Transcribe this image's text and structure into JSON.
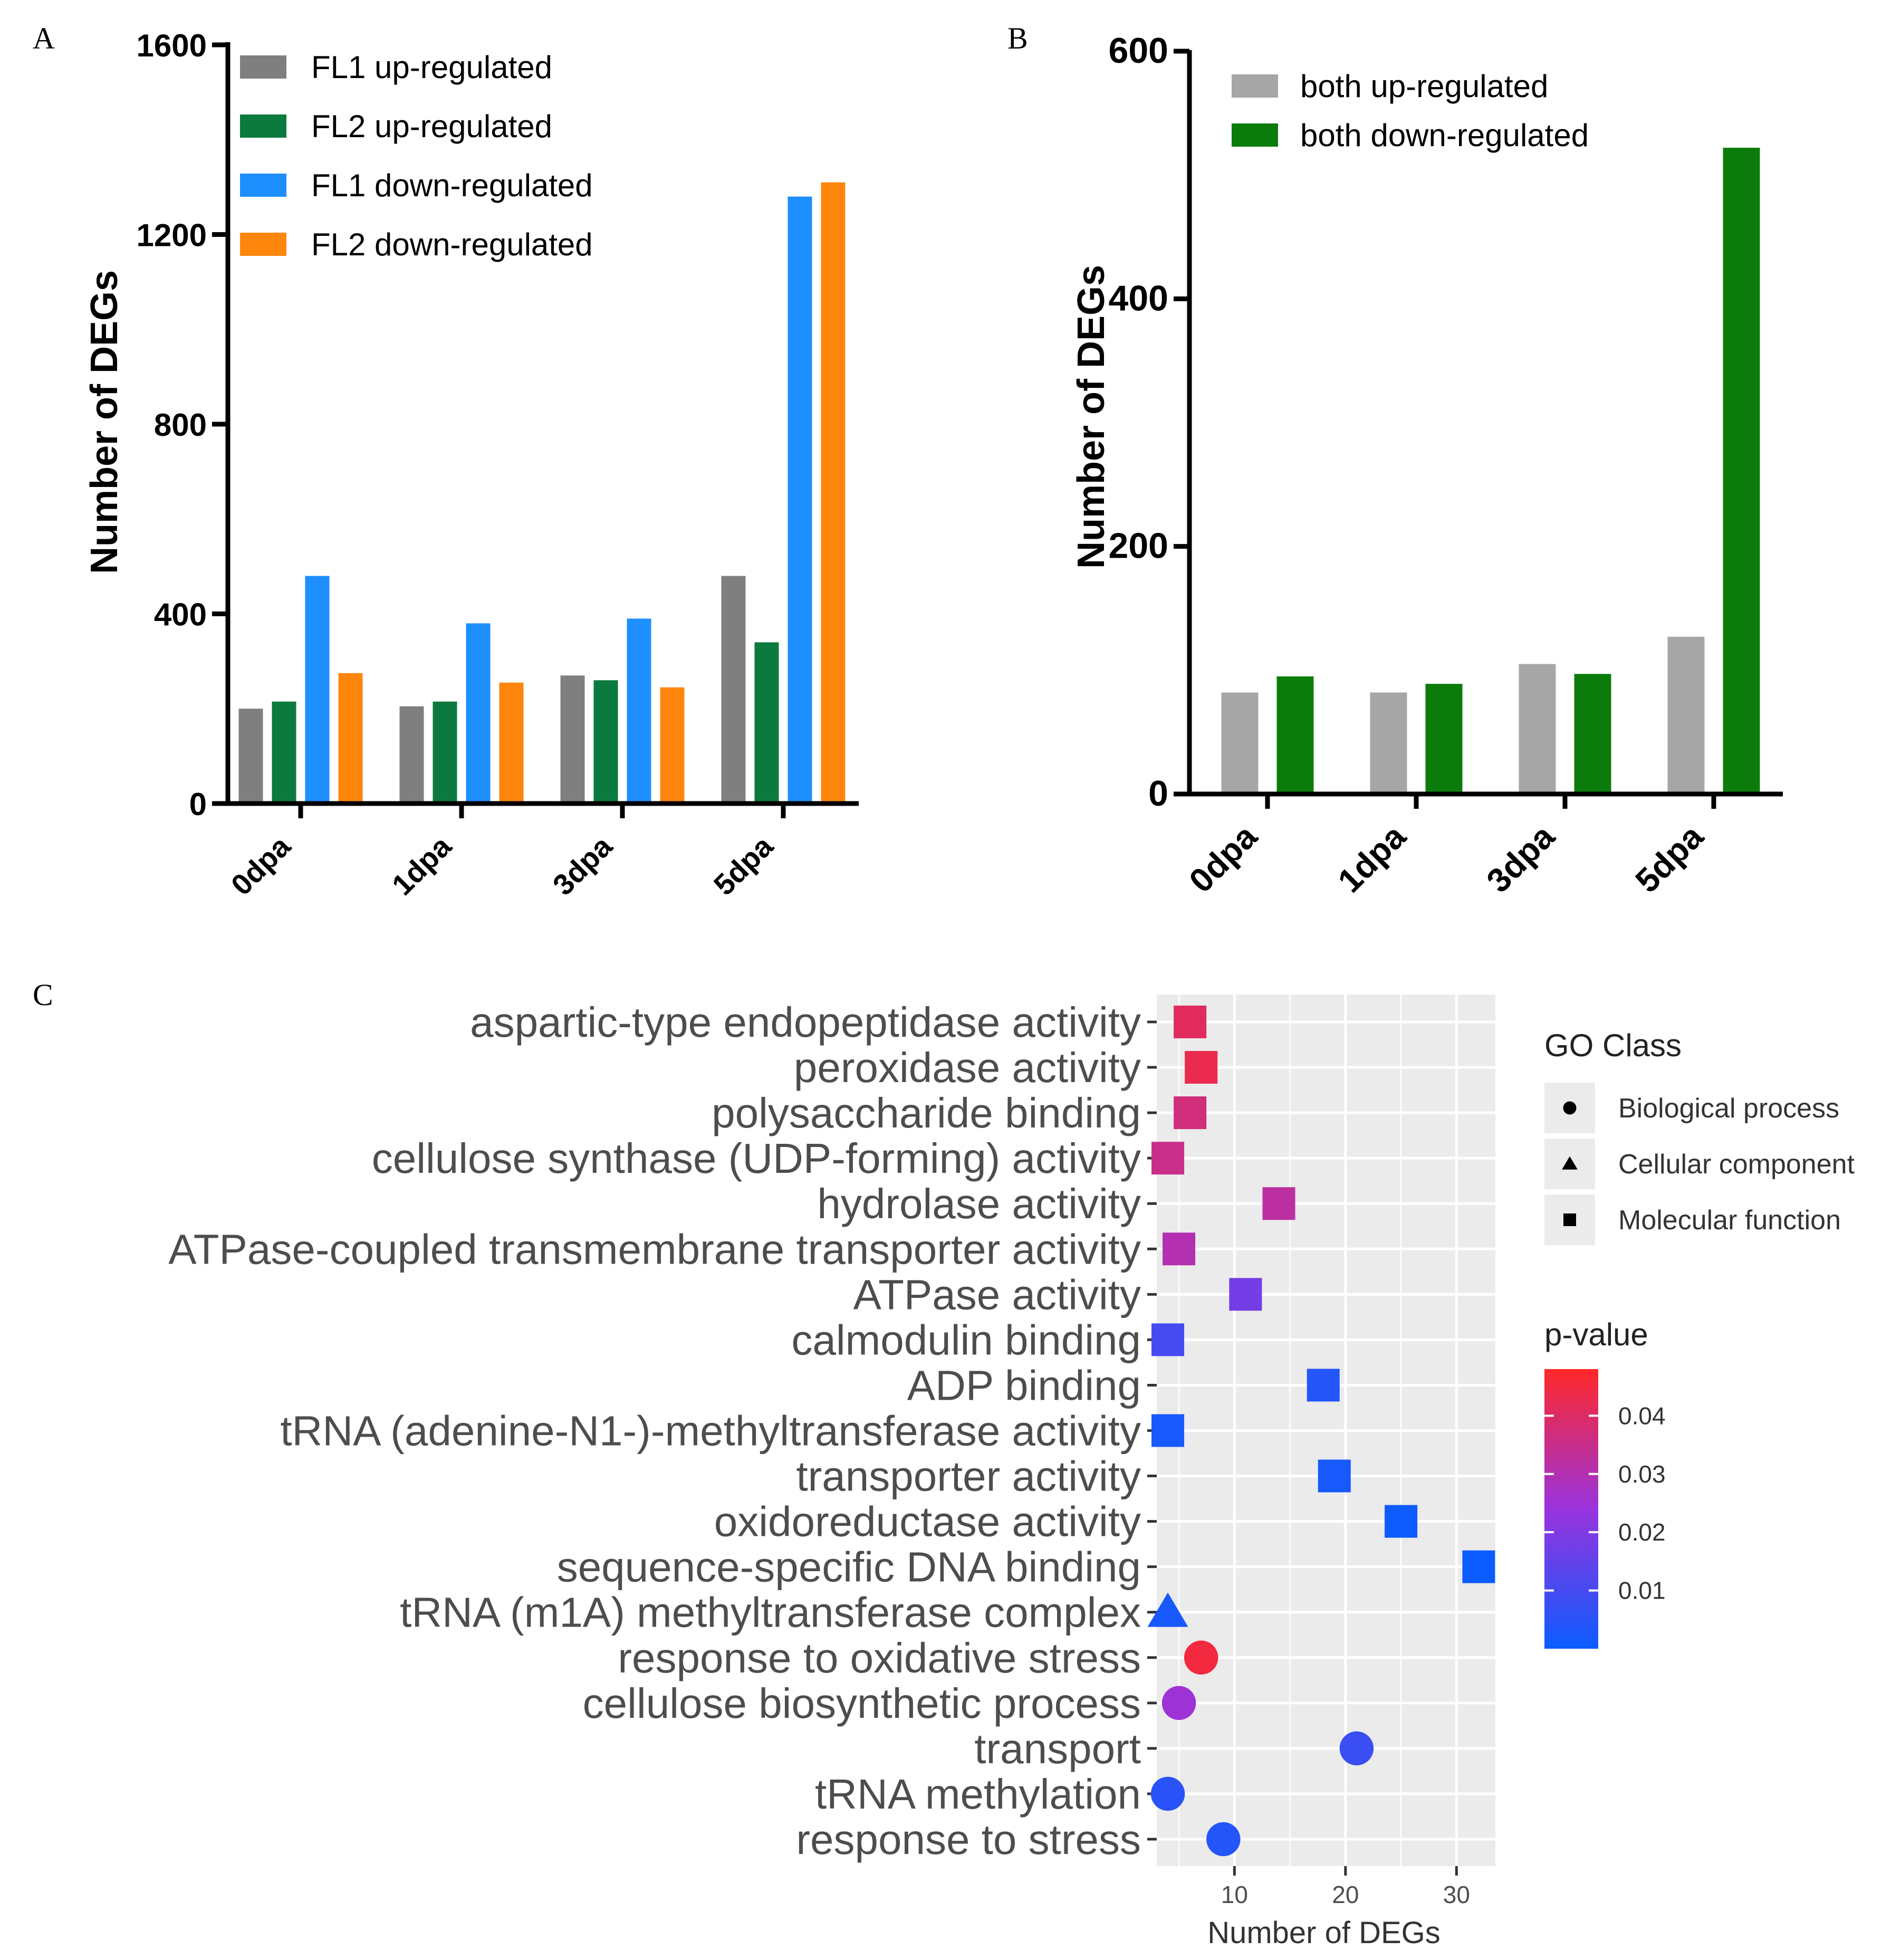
{
  "panels": {
    "a": "A",
    "b": "B",
    "c": "C"
  },
  "chart_data": [
    {
      "type": "bar",
      "panel": "A",
      "categories": [
        "0dpa",
        "1dpa",
        "3dpa",
        "5dpa"
      ],
      "series": [
        {
          "name": "FL1 up-regulated",
          "color": "#7f7f7f",
          "values": [
            200,
            205,
            270,
            480
          ]
        },
        {
          "name": "FL2 up-regulated",
          "color": "#0c7a3e",
          "values": [
            215,
            215,
            260,
            340
          ]
        },
        {
          "name": "FL1 down-regulated",
          "color": "#1e8fff",
          "values": [
            480,
            380,
            390,
            1280
          ]
        },
        {
          "name": "FL2 down-regulated",
          "color": "#ff860d",
          "values": [
            275,
            255,
            245,
            1310
          ]
        }
      ],
      "ylabel": "Number of DEGs",
      "ylim": [
        0,
        1600
      ],
      "yticks": [
        0,
        400,
        800,
        1200,
        1600
      ],
      "ytick_labels": [
        "0",
        "400",
        "800",
        "1200",
        "1600"
      ],
      "legend": "top-left"
    },
    {
      "type": "bar",
      "panel": "B",
      "categories": [
        "0dpa",
        "1dpa",
        "3dpa",
        "5dpa"
      ],
      "series": [
        {
          "name": "both up-regulated",
          "color": "#a6a6a6",
          "values": [
            82,
            82,
            105,
            127
          ]
        },
        {
          "name": "both down-regulated",
          "color": "#0b7c0b",
          "values": [
            95,
            89,
            97,
            522
          ]
        }
      ],
      "ylabel": "Number of DEGs",
      "ylim": [
        0,
        600
      ],
      "yticks": [
        0,
        200,
        400,
        600
      ],
      "ytick_labels": [
        "0",
        "200",
        "400",
        "600"
      ],
      "legend": "top-left"
    },
    {
      "type": "scatter",
      "panel": "C",
      "xlabel": "Number of DEGs",
      "xlim": [
        3,
        33.5
      ],
      "xticks": [
        10,
        20,
        30
      ],
      "xtick_labels": [
        "10",
        "20",
        "30"
      ],
      "terms": [
        {
          "label": "aspartic-type endopeptidase activity",
          "x": 6,
          "p": 0.041,
          "shape": "square"
        },
        {
          "label": "peroxidase activity",
          "x": 7,
          "p": 0.043,
          "shape": "square"
        },
        {
          "label": "polysaccharide binding",
          "x": 6,
          "p": 0.037,
          "shape": "square"
        },
        {
          "label": "cellulose synthase (UDP-forming) activity",
          "x": 4,
          "p": 0.035,
          "shape": "square"
        },
        {
          "label": "hydrolase activity",
          "x": 14,
          "p": 0.032,
          "shape": "square"
        },
        {
          "label": "ATPase-coupled transmembrane transporter activity",
          "x": 5,
          "p": 0.03,
          "shape": "square"
        },
        {
          "label": "ATPase activity",
          "x": 11,
          "p": 0.018,
          "shape": "square"
        },
        {
          "label": "calmodulin binding",
          "x": 4,
          "p": 0.01,
          "shape": "square"
        },
        {
          "label": "ADP binding",
          "x": 18,
          "p": 0.004,
          "shape": "square"
        },
        {
          "label": "tRNA (adenine-N1-)-methyltransferase activity",
          "x": 4,
          "p": 0.002,
          "shape": "square"
        },
        {
          "label": "transporter activity",
          "x": 19,
          "p": 0.002,
          "shape": "square"
        },
        {
          "label": "oxidoreductase activity",
          "x": 25,
          "p": 0.0005,
          "shape": "square"
        },
        {
          "label": "sequence-specific DNA binding",
          "x": 32,
          "p": 0.0002,
          "shape": "square"
        },
        {
          "label": "tRNA (m1A) methyltransferase complex",
          "x": 4,
          "p": 0.002,
          "shape": "triangle"
        },
        {
          "label": "response to oxidative stress",
          "x": 7,
          "p": 0.045,
          "shape": "circle"
        },
        {
          "label": "cellulose biosynthetic process",
          "x": 5,
          "p": 0.025,
          "shape": "circle"
        },
        {
          "label": "transport",
          "x": 21,
          "p": 0.008,
          "shape": "circle"
        },
        {
          "label": "tRNA methylation",
          "x": 4,
          "p": 0.005,
          "shape": "circle"
        },
        {
          "label": "response to stress",
          "x": 9,
          "p": 0.004,
          "shape": "circle"
        }
      ],
      "shape_legend": {
        "title": "GO Class",
        "items": [
          {
            "label": "Biological process",
            "shape": "circle"
          },
          {
            "label": "Cellular component",
            "shape": "triangle"
          },
          {
            "label": "Molecular function",
            "shape": "square"
          }
        ]
      },
      "color_legend": {
        "title": "p-value",
        "range": [
          0,
          0.048
        ],
        "ticks": [
          0.01,
          0.02,
          0.03,
          0.04
        ],
        "tick_labels": [
          "0.01",
          "0.02",
          "0.03",
          "0.04"
        ],
        "low_color": "#0b5cff",
        "mid_color": "#9933dd",
        "high_color": "#ff2828"
      },
      "panel_bg": "#ebebeb",
      "grid_color": "#ffffff"
    }
  ]
}
